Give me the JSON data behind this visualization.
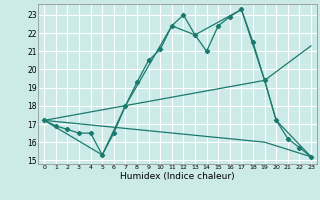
{
  "xlabel": "Humidex (Indice chaleur)",
  "bg_color": "#cceae8",
  "line_color": "#1a7a6e",
  "grid_color": "#ffffff",
  "xlim": [
    -0.5,
    23.5
  ],
  "ylim": [
    14.8,
    23.6
  ],
  "xticks": [
    0,
    1,
    2,
    3,
    4,
    5,
    6,
    7,
    8,
    9,
    10,
    11,
    12,
    13,
    14,
    15,
    16,
    17,
    18,
    19,
    20,
    21,
    22,
    23
  ],
  "yticks": [
    15,
    16,
    17,
    18,
    19,
    20,
    21,
    22,
    23
  ],
  "lines": [
    {
      "x": [
        0,
        1,
        2,
        3,
        4,
        5,
        6,
        7,
        8,
        9,
        10,
        11,
        12,
        13,
        14,
        15,
        16,
        17,
        18,
        19,
        20,
        21,
        22,
        23
      ],
      "y": [
        17.2,
        16.9,
        16.7,
        16.5,
        16.5,
        15.3,
        16.5,
        18.0,
        19.3,
        20.5,
        21.1,
        22.4,
        23.0,
        21.9,
        21.0,
        22.4,
        22.9,
        23.3,
        21.5,
        19.4,
        17.2,
        16.2,
        15.7,
        15.2
      ],
      "marker": true
    },
    {
      "x": [
        0,
        5,
        7,
        11,
        13,
        17,
        19,
        20,
        23
      ],
      "y": [
        17.2,
        15.3,
        18.0,
        22.4,
        21.9,
        23.3,
        19.4,
        17.2,
        15.2
      ],
      "marker": false
    },
    {
      "x": [
        0,
        19,
        23
      ],
      "y": [
        17.2,
        19.4,
        21.3
      ],
      "marker": false
    },
    {
      "x": [
        0,
        19,
        23
      ],
      "y": [
        17.2,
        16.0,
        15.2
      ],
      "marker": false
    }
  ]
}
